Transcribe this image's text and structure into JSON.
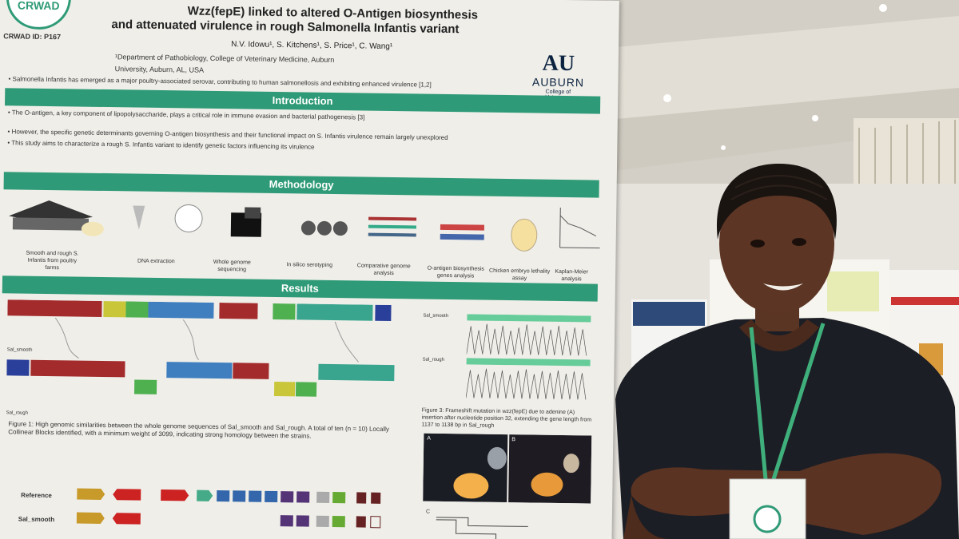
{
  "poster": {
    "title_lines": [
      "Wzz(fepE) linked to altered O-Antigen biosynthesis",
      "and attenuated virulence in rough Salmonella Infantis variant"
    ],
    "logo": "CRWAD",
    "crwad_id": "CRWAD ID: P167",
    "authors": "N.V. Idowu¹, S. Kitchens¹, S. Price¹, C. Wang¹",
    "affiliation_lines": [
      "¹Department of Pathobiology, College of Veterinary Medicine, Auburn University, Auburn, AL, USA"
    ],
    "auburn": {
      "name": "AUBURN",
      "college": "College of Veterinary Medicine"
    },
    "introduction": {
      "heading": "Introduction",
      "bullets": [
        "Salmonella Infantis has emerged as a major poultry-associated serovar, contributing to human salmonellosis and exhibiting enhanced virulence [1,2]",
        "The O-antigen, a key component of lipopolysaccharide, plays a critical role in immune evasion and bacterial pathogenesis [3]",
        "However, the specific genetic determinants governing O-antigen biosynthesis and their functional impact on S. Infantis virulence remain largely unexplored",
        "This study aims to characterize a rough S. Infantis variant to identify genetic factors influencing its virulence"
      ]
    },
    "methodology": {
      "heading": "Methodology",
      "steps": [
        "Smooth and rough S. Infantis from poultry farms",
        "DNA extraction",
        "Whole genome sequencing",
        "In silico serotyping",
        "Comparative genome analysis",
        "O-antigen biosynthesis genes analysis",
        "Chicken embryo lethality assay",
        "Kaplan-Meier analysis"
      ]
    },
    "results": {
      "heading": "Results",
      "figure1_labels": [
        "Sal_smooth",
        "Sal_rough"
      ],
      "figure1_caption": "Figure 1: High genomic similarities between the whole genome sequences of Sal_smooth and Sal_rough. A total of ten (n = 10) Locally Collinear Blocks identified, with a minimum weight of 3099, indicating strong homology between the strains.",
      "figure3_labels": [
        "Sal_smooth",
        "Sal_rough"
      ],
      "figure3_caption": "Figure 3: Frameshift mutation in wzz(fepE) due to adenine (A) insertion after nucleotide position 32, extending the gene length from 1137 to 1138 bp in Sal_rough",
      "panel_labels": [
        "A",
        "B",
        "C"
      ],
      "gene_rows": [
        "Reference",
        "Sal_smooth"
      ]
    }
  }
}
